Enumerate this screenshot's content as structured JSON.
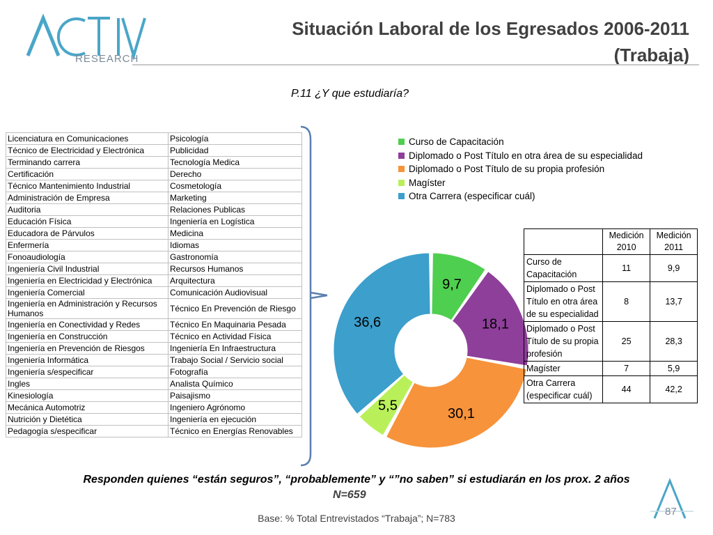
{
  "header": {
    "title_line1": "Situación Laboral de los Egresados 2006-2011",
    "title_line2": "(Trabaja)",
    "logo_text": "RESEARCH",
    "question": "P.11 ¿Y que estudiaría?"
  },
  "careers": [
    [
      "Licenciatura en Comunicaciones",
      "Psicología"
    ],
    [
      "Técnico de Electricidad y Electrónica",
      "Publicidad"
    ],
    [
      "Terminando carrera",
      "Tecnología Medica"
    ],
    [
      "Certificación",
      "Derecho"
    ],
    [
      "Técnico Mantenimiento Industrial",
      "Cosmetología"
    ],
    [
      "Administración de Empresa",
      "Marketing"
    ],
    [
      "Auditoria",
      "Relaciones Publicas"
    ],
    [
      "Educación Física",
      "Ingeniería en Logística"
    ],
    [
      "Educadora de Párvulos",
      "Medicina"
    ],
    [
      "Enfermería",
      "Idiomas"
    ],
    [
      "Fonoaudiología",
      "Gastronomía"
    ],
    [
      "Ingeniería Civil Industrial",
      "Recursos Humanos"
    ],
    [
      "Ingeniería en Electricidad y Electrónica",
      "Arquitectura"
    ],
    [
      "Ingeniería Comercial",
      "Comunicación Audiovisual"
    ],
    [
      "Ingeniería en Administración y Recursos Humanos",
      "Técnico En Prevención de Riesgo"
    ],
    [
      "Ingeniería en Conectividad y Redes",
      "Técnico En Maquinaria Pesada"
    ],
    [
      "Ingeniería en Construcción",
      "Técnico en Actividad Física"
    ],
    [
      "Ingeniería en Prevención de Riesgos",
      "Ingeniería En Infraestructura"
    ],
    [
      "Ingeniería Informática",
      "Trabajo Social / Servicio social"
    ],
    [
      "Ingeniería s/especificar",
      "Fotografía"
    ],
    [
      "Ingles",
      "Analista Químico"
    ],
    [
      "Kinesiología",
      "Paisajismo"
    ],
    [
      "Mecánica Automotriz",
      "Ingeniero Agrónomo"
    ],
    [
      "Nutrición y Dietética",
      "Ingeniería en ejecución"
    ],
    [
      "Pedagogía s/especificar",
      "Técnico en Energías Renovables"
    ]
  ],
  "chart_data": {
    "type": "pie",
    "donut": true,
    "legend_position": "top-right",
    "labels": [
      "Curso de Capacitación",
      "Diplomado o Post Título en otra área de su especialidad",
      "Diplomado o Post Título de su propia profesión",
      "Magíster",
      "Otra Carrera (especificar cuál)"
    ],
    "values": [
      9.7,
      18.1,
      30.1,
      5.5,
      36.6
    ],
    "value_labels": [
      "9,7",
      "18,1",
      "30,1",
      "5,5",
      "36,6"
    ],
    "colors": [
      "#4fcf4f",
      "#8e3f9a",
      "#f7933b",
      "#b9f05a",
      "#3c9fcc"
    ]
  },
  "measures": {
    "headers": [
      "Medición 2010",
      "Medición 2011"
    ],
    "rows": [
      {
        "label": "Curso de Capacitación",
        "v2010": "11",
        "v2011": "9,9"
      },
      {
        "label": "Diplomado o Post Título en otra área de su especialidad",
        "v2010": "8",
        "v2011": "13,7"
      },
      {
        "label": "Diplomado o Post Título de su propia profesión",
        "v2010": "25",
        "v2011": "28,3"
      },
      {
        "label": "Magíster",
        "v2010": "7",
        "v2011": "5,9"
      },
      {
        "label": "Otra Carrera (especificar cuál)",
        "v2010": "44",
        "v2011": "42,2"
      }
    ]
  },
  "footer": {
    "note": "Responden quienes “están seguros”, “probablemente” y “”no saben” si estudiarán en los prox. 2 años",
    "n": "N=659",
    "base": "Base: % Total Entrevistados “Trabaja”; N=783",
    "page": "87"
  }
}
